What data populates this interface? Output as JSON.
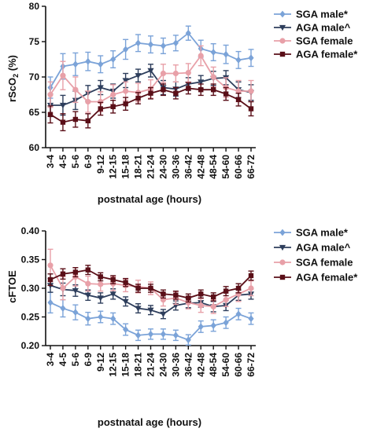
{
  "chart_data": [
    {
      "type": "line",
      "ylabel": "rScO2 (%)",
      "ylabel_main": "rScO",
      "ylabel_sub": "2",
      "ylabel_tail": " (%)",
      "xlabel": "postnatal age (hours)",
      "ylim": [
        60,
        80
      ],
      "yticks": [
        "60",
        "65",
        "70",
        "75",
        "80"
      ],
      "categories": [
        "3-4",
        "4-5",
        "5-6",
        "6-9",
        "9-12",
        "12-15",
        "15-18",
        "18-21",
        "21-24",
        "24-30",
        "30-36",
        "36-42",
        "42-48",
        "48-54",
        "54-60",
        "60-66",
        "66-72"
      ],
      "legend_position": "top-right",
      "grid": false,
      "series": [
        {
          "name": "SGA male*",
          "color": "#7ba3d8",
          "marker": "diamond",
          "values": [
            68.5,
            71.5,
            71.8,
            72.2,
            71.8,
            72.5,
            73.9,
            74.8,
            74.6,
            74.4,
            74.8,
            76.2,
            74.0,
            73.5,
            73.2,
            72.4,
            72.7
          ],
          "errors": [
            1.5,
            1.8,
            1.6,
            1.3,
            1.2,
            1.2,
            1.4,
            1.2,
            1.2,
            1.1,
            1.1,
            1.0,
            1.2,
            1.2,
            1.3,
            1.2,
            1.2
          ]
        },
        {
          "name": "AGA male^",
          "color": "#2e3e5c",
          "marker": "triangle-down",
          "values": [
            66.0,
            66.0,
            66.7,
            67.7,
            68.5,
            68.0,
            69.5,
            70.2,
            70.9,
            68.5,
            68.3,
            69.0,
            69.3,
            69.8,
            69.9,
            68.2,
            67.8
          ],
          "errors": [
            1.6,
            1.4,
            1.3,
            1.1,
            1.0,
            1.0,
            1.0,
            0.9,
            0.9,
            1.0,
            1.0,
            0.9,
            0.9,
            1.0,
            1.0,
            1.1,
            1.1
          ]
        },
        {
          "name": "SGA female",
          "color": "#e8a0a8",
          "marker": "circle",
          "values": [
            67.5,
            70.2,
            68.2,
            66.5,
            66.5,
            67.5,
            68.0,
            67.8,
            68.3,
            70.5,
            70.5,
            70.6,
            73.0,
            70.0,
            68.5,
            68.0,
            68.0
          ],
          "errors": [
            1.8,
            2.0,
            1.8,
            1.5,
            1.4,
            1.4,
            1.3,
            1.3,
            1.3,
            1.3,
            1.2,
            1.3,
            1.4,
            1.4,
            1.4,
            1.5,
            1.5
          ]
        },
        {
          "name": "AGA female*",
          "color": "#5a0f18",
          "marker": "square",
          "values": [
            64.7,
            63.6,
            64.0,
            63.8,
            65.5,
            65.8,
            66.2,
            67.0,
            67.7,
            68.2,
            67.7,
            68.4,
            68.2,
            68.2,
            67.6,
            66.8,
            65.5
          ],
          "errors": [
            1.2,
            1.2,
            1.1,
            1.0,
            0.9,
            0.9,
            0.9,
            0.8,
            0.8,
            0.8,
            0.8,
            0.8,
            0.8,
            0.8,
            0.9,
            0.9,
            1.0
          ]
        }
      ]
    },
    {
      "type": "line",
      "ylabel": "cFTOE",
      "xlabel": "postnatal age (hours)",
      "ylim": [
        0.2,
        0.4
      ],
      "yticks": [
        "0.20",
        "0.25",
        "0.30",
        "0.35",
        "0.40"
      ],
      "categories": [
        "3-4",
        "4-5",
        "5-6",
        "6-9",
        "9-12",
        "12-15",
        "15-18",
        "18-21",
        "21-24",
        "24-30",
        "30-36",
        "36-42",
        "42-48",
        "48-54",
        "54-60",
        "60-66",
        "66-72"
      ],
      "legend_position": "top-right",
      "grid": false,
      "series": [
        {
          "name": "SGA male*",
          "color": "#7ba3d8",
          "marker": "diamond",
          "values": [
            0.275,
            0.265,
            0.258,
            0.247,
            0.25,
            0.247,
            0.228,
            0.218,
            0.22,
            0.22,
            0.218,
            0.21,
            0.233,
            0.235,
            0.24,
            0.255,
            0.247
          ],
          "errors": [
            0.018,
            0.015,
            0.013,
            0.011,
            0.01,
            0.01,
            0.01,
            0.009,
            0.009,
            0.009,
            0.009,
            0.009,
            0.01,
            0.01,
            0.01,
            0.01,
            0.01
          ]
        },
        {
          "name": "AGA male^",
          "color": "#2e3e5c",
          "marker": "triangle-down",
          "values": [
            0.305,
            0.298,
            0.296,
            0.288,
            0.283,
            0.29,
            0.277,
            0.265,
            0.262,
            0.255,
            0.27,
            0.274,
            0.275,
            0.268,
            0.27,
            0.288,
            0.29
          ],
          "errors": [
            0.012,
            0.011,
            0.01,
            0.009,
            0.009,
            0.009,
            0.008,
            0.008,
            0.008,
            0.008,
            0.008,
            0.008,
            0.008,
            0.009,
            0.009,
            0.009,
            0.009
          ]
        },
        {
          "name": "SGA female",
          "color": "#e8a0a8",
          "marker": "circle",
          "values": [
            0.34,
            0.3,
            0.32,
            0.308,
            0.307,
            0.308,
            0.305,
            0.303,
            0.3,
            0.28,
            0.283,
            0.275,
            0.27,
            0.268,
            0.28,
            0.29,
            0.3
          ],
          "errors": [
            0.028,
            0.02,
            0.016,
            0.013,
            0.012,
            0.012,
            0.011,
            0.011,
            0.011,
            0.011,
            0.011,
            0.011,
            0.012,
            0.012,
            0.012,
            0.013,
            0.013
          ]
        },
        {
          "name": "AGA female*",
          "color": "#5a0f18",
          "marker": "square",
          "values": [
            0.315,
            0.325,
            0.328,
            0.332,
            0.32,
            0.315,
            0.31,
            0.3,
            0.3,
            0.29,
            0.288,
            0.283,
            0.29,
            0.285,
            0.295,
            0.3,
            0.322
          ],
          "errors": [
            0.01,
            0.009,
            0.008,
            0.008,
            0.007,
            0.007,
            0.007,
            0.007,
            0.007,
            0.007,
            0.007,
            0.007,
            0.007,
            0.007,
            0.008,
            0.008,
            0.008
          ]
        }
      ]
    }
  ]
}
